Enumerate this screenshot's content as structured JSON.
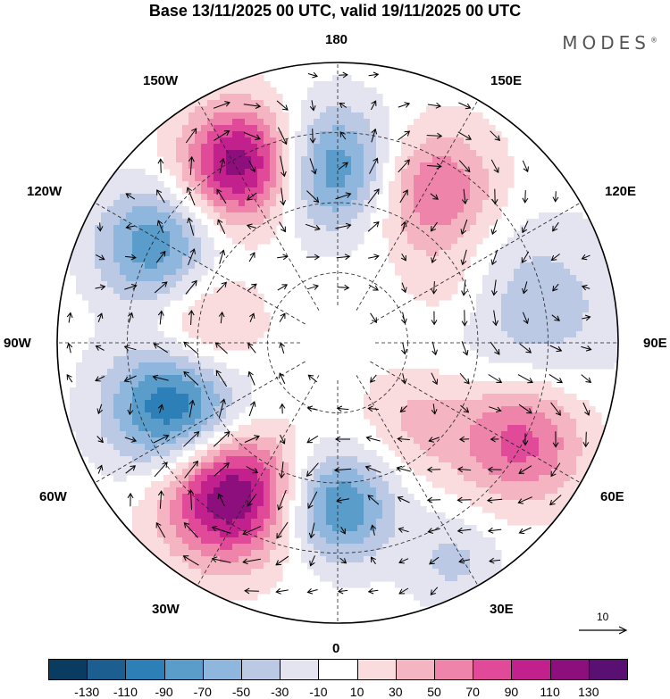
{
  "title": "Base 13/11/2025 00 UTC, valid 19/11/2025 00 UTC",
  "brand": {
    "name": "MODES",
    "mark": "®"
  },
  "map": {
    "projection": "north polar stereographic",
    "longitude_labels": {
      "top": "180",
      "bottom": "0",
      "left": "90W",
      "right": "90E",
      "upper_left": "150W",
      "upper_right": "150E",
      "left_upper": "120W",
      "right_upper": "120E",
      "left_lower": "60W",
      "right_lower": "60E",
      "lower_left": "30W",
      "lower_right": "30E"
    },
    "reference_vector": "10",
    "anomalies": [
      {
        "lon": -178,
        "lat_pos": 0.62,
        "value": -95,
        "spread": 0.16
      },
      {
        "lon": -152,
        "lat_pos": 0.72,
        "value": 130,
        "spread": 0.15
      },
      {
        "lon": -118,
        "lat_pos": 0.74,
        "value": -85,
        "spread": 0.15
      },
      {
        "lon": -95,
        "lat_pos": 0.48,
        "value": 55,
        "spread": 0.14
      },
      {
        "lon": -68,
        "lat_pos": 0.62,
        "value": -120,
        "spread": 0.17
      },
      {
        "lon": -36,
        "lat_pos": 0.66,
        "value": 140,
        "spread": 0.17
      },
      {
        "lon": 0,
        "lat_pos": 0.58,
        "value": -95,
        "spread": 0.14
      },
      {
        "lon": 148,
        "lat_pos": 0.64,
        "value": 75,
        "spread": 0.16
      },
      {
        "lon": 115,
        "lat_pos": 0.45,
        "value": 25,
        "spread": 0.12
      },
      {
        "lon": 100,
        "lat_pos": 0.7,
        "value": -45,
        "spread": 0.22
      },
      {
        "lon": 62,
        "lat_pos": 0.74,
        "value": 80,
        "spread": 0.16
      },
      {
        "lon": 45,
        "lat_pos": 0.4,
        "value": 35,
        "spread": 0.14
      },
      {
        "lon": 28,
        "lat_pos": 0.88,
        "value": -35,
        "spread": 0.12
      }
    ]
  },
  "colorbar": {
    "colors": [
      "#0a3b61",
      "#1b5e8f",
      "#2d7fb8",
      "#5a9dcb",
      "#8fb6dc",
      "#bcc9e4",
      "#e4e3f0",
      "#ffffff",
      "#fbdcde",
      "#f5b4c2",
      "#ee84aa",
      "#e04a99",
      "#c2208c",
      "#8d0f7d",
      "#5a0f72"
    ],
    "ticks": [
      "-130",
      "-110",
      "-90",
      "-70",
      "-50",
      "-30",
      "-10",
      "10",
      "30",
      "50",
      "70",
      "90",
      "110",
      "130"
    ]
  }
}
